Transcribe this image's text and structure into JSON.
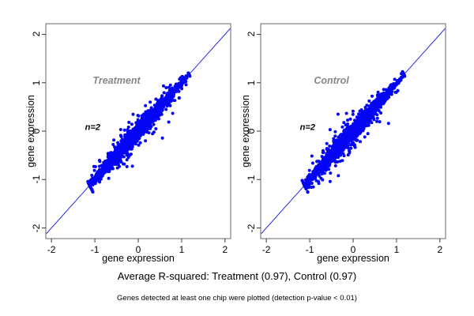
{
  "figure": {
    "captions": {
      "r_squared": "Average R-squared: Treatment (0.97), Control (0.97)",
      "footnote": "Genes detected at least one chip were plotted (detection p-value < 0.01)"
    },
    "colors": {
      "background": "#ffffff",
      "point": "#0505f5",
      "identity_line": "#2d2de8",
      "frame": "#808080",
      "tick": "#3a3a3a",
      "group_label": "#878787",
      "text": "#000000"
    }
  },
  "chart_data": [
    {
      "type": "scatter",
      "panel": "treatment",
      "group_label": "Treatment",
      "annotation": "n=2",
      "xlabel": "gene expression",
      "ylabel": "gene expression",
      "xlim": [
        -2.13,
        2.13
      ],
      "ylim": [
        -2.22,
        2.22
      ],
      "xtick_values": [
        -2,
        -1,
        0,
        1,
        2
      ],
      "ytick_values": [
        -2,
        -1,
        0,
        1,
        2
      ],
      "xtick_labels": [
        "-2",
        "-1",
        "0",
        "1",
        "2"
      ],
      "ytick_labels": [
        "-2",
        "-1",
        "0",
        "1",
        "2"
      ],
      "grid": false,
      "identity_line": {
        "slope": 1,
        "intercept": 0
      },
      "r_squared": 0.97,
      "annotation_pos": {
        "x": -1.05,
        "y": 0.06
      },
      "group_label_pos": {
        "x": -0.5,
        "y": 1.05
      },
      "points_generator": {
        "n": 2600,
        "seed": 42,
        "along_diag_mean": -0.15,
        "along_diag_sd": 0.55,
        "diag_min": -1.12,
        "diag_max": 1.17,
        "perp_sd": 0.065,
        "outlier_sd_mult_mid": 2.6,
        "outlier_sd_mult_far": 4.5,
        "frac_core": 0.85,
        "frac_mid": 0.13,
        "max_offset": 0.7
      }
    },
    {
      "type": "scatter",
      "panel": "control",
      "group_label": "Control",
      "annotation": "n=2",
      "xlabel": "gene expression",
      "ylabel": "gene expression",
      "xlim": [
        -2.13,
        2.13
      ],
      "ylim": [
        -2.22,
        2.22
      ],
      "xtick_values": [
        -2,
        -1,
        0,
        1,
        2
      ],
      "ytick_values": [
        -2,
        -1,
        0,
        1,
        2
      ],
      "xtick_labels": [
        "-2",
        "-1",
        "0",
        "1",
        "2"
      ],
      "ytick_labels": [
        "-2",
        "-1",
        "0",
        "1",
        "2"
      ],
      "grid": false,
      "identity_line": {
        "slope": 1,
        "intercept": 0
      },
      "r_squared": 0.97,
      "annotation_pos": {
        "x": -1.05,
        "y": 0.06
      },
      "group_label_pos": {
        "x": -0.5,
        "y": 1.05
      },
      "points_generator": {
        "n": 2600,
        "seed": 1337,
        "along_diag_mean": -0.15,
        "along_diag_sd": 0.55,
        "diag_min": -1.12,
        "diag_max": 1.17,
        "perp_sd": 0.068,
        "outlier_sd_mult_mid": 2.6,
        "outlier_sd_mult_far": 4.5,
        "frac_core": 0.85,
        "frac_mid": 0.13,
        "max_offset": 0.7
      }
    }
  ]
}
